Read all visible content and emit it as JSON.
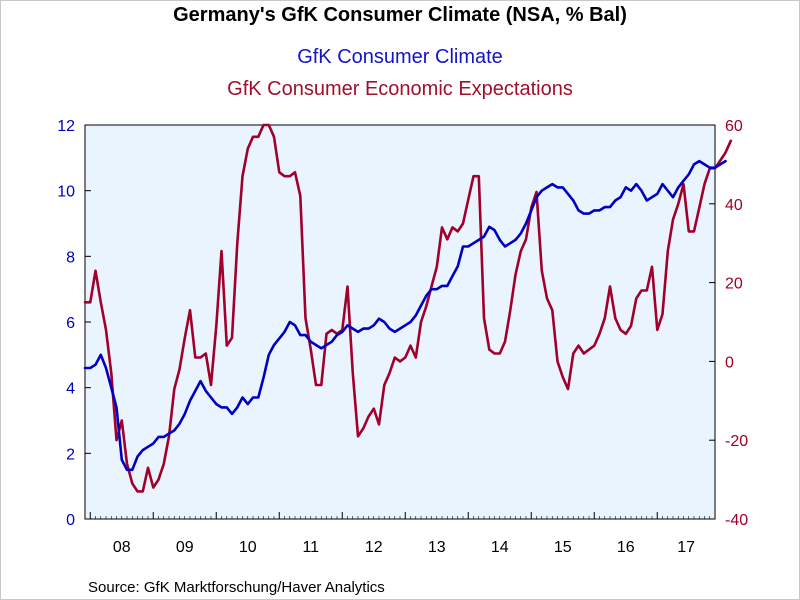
{
  "chart_data": {
    "type": "line",
    "title": "Germany's GfK Consumer Climate (NSA, % Bal)",
    "source": "Source:  GfK Marktforschung/Haver Analytics",
    "x_tick_labels": [
      "08",
      "09",
      "10",
      "11",
      "12",
      "13",
      "14",
      "15",
      "16",
      "17"
    ],
    "x_range": [
      "2007-12",
      "2017-12"
    ],
    "grid": false,
    "plot_background": "#eaf4ff",
    "left_axis": {
      "ylim": [
        0,
        12
      ],
      "ticks": [
        0,
        2,
        4,
        6,
        8,
        10,
        12
      ],
      "color": "#0000b8"
    },
    "right_axis": {
      "ylim": [
        -40,
        60
      ],
      "ticks": [
        -40,
        -20,
        0,
        20,
        40,
        60
      ],
      "color": "#a00026"
    },
    "series": [
      {
        "name": "GfK Consumer Climate",
        "axis": "left",
        "color": "#0000c0",
        "start": "2007-12",
        "frequency": "monthly",
        "values": [
          4.6,
          4.6,
          4.7,
          5.0,
          4.6,
          4.0,
          3.4,
          1.8,
          1.5,
          1.5,
          1.9,
          2.1,
          2.2,
          2.3,
          2.5,
          2.5,
          2.6,
          2.7,
          2.9,
          3.2,
          3.6,
          3.9,
          4.2,
          3.9,
          3.7,
          3.5,
          3.4,
          3.4,
          3.2,
          3.4,
          3.7,
          3.5,
          3.7,
          3.7,
          4.3,
          5.0,
          5.3,
          5.5,
          5.7,
          6.0,
          5.9,
          5.6,
          5.6,
          5.4,
          5.3,
          5.2,
          5.3,
          5.4,
          5.6,
          5.7,
          5.9,
          5.8,
          5.7,
          5.8,
          5.8,
          5.9,
          6.1,
          6.0,
          5.8,
          5.7,
          5.8,
          5.9,
          6.0,
          6.2,
          6.5,
          6.8,
          7.0,
          7.0,
          7.1,
          7.1,
          7.4,
          7.7,
          8.3,
          8.3,
          8.4,
          8.5,
          8.6,
          8.9,
          8.8,
          8.5,
          8.3,
          8.4,
          8.5,
          8.7,
          9.0,
          9.4,
          9.8,
          10.0,
          10.1,
          10.2,
          10.1,
          10.1,
          9.9,
          9.7,
          9.4,
          9.3,
          9.3,
          9.4,
          9.4,
          9.5,
          9.5,
          9.7,
          9.8,
          10.1,
          10.0,
          10.2,
          10.0,
          9.7,
          9.8,
          9.9,
          10.2,
          10.0,
          9.8,
          10.1,
          10.3,
          10.5,
          10.8,
          10.9,
          10.8,
          10.7,
          10.7,
          10.8,
          10.9
        ]
      },
      {
        "name": "GfK Consumer Economic Expectations",
        "axis": "right",
        "color": "#a0002a",
        "start": "2007-12",
        "frequency": "monthly",
        "values": [
          15,
          15,
          23,
          15,
          8,
          -3,
          -20,
          -15,
          -26,
          -31,
          -33,
          -33,
          -27,
          -32,
          -30,
          -26,
          -19,
          -7,
          -2,
          6,
          13,
          1,
          1,
          2,
          -6,
          9,
          28,
          4,
          6,
          30,
          47,
          54,
          57,
          57,
          60,
          60,
          57,
          48,
          47,
          47,
          48,
          42,
          11,
          3,
          -6,
          -6,
          7,
          8,
          7,
          8,
          19,
          -3,
          -19,
          -17,
          -14,
          -12,
          -16,
          -6,
          -3,
          1,
          0,
          1,
          4,
          1,
          10,
          14,
          19,
          24,
          34,
          31,
          34,
          33,
          35,
          41,
          47,
          47,
          11,
          3,
          2,
          2,
          5,
          13,
          22,
          28,
          31,
          39,
          43,
          23,
          16,
          13,
          0,
          -4,
          -7,
          2,
          4,
          2,
          3,
          4,
          7,
          11,
          19,
          11,
          8,
          7,
          9,
          16,
          18,
          18,
          24,
          8,
          12,
          28,
          36,
          40,
          45,
          33,
          33,
          39,
          45,
          49,
          49,
          51,
          53,
          56
        ]
      }
    ]
  }
}
